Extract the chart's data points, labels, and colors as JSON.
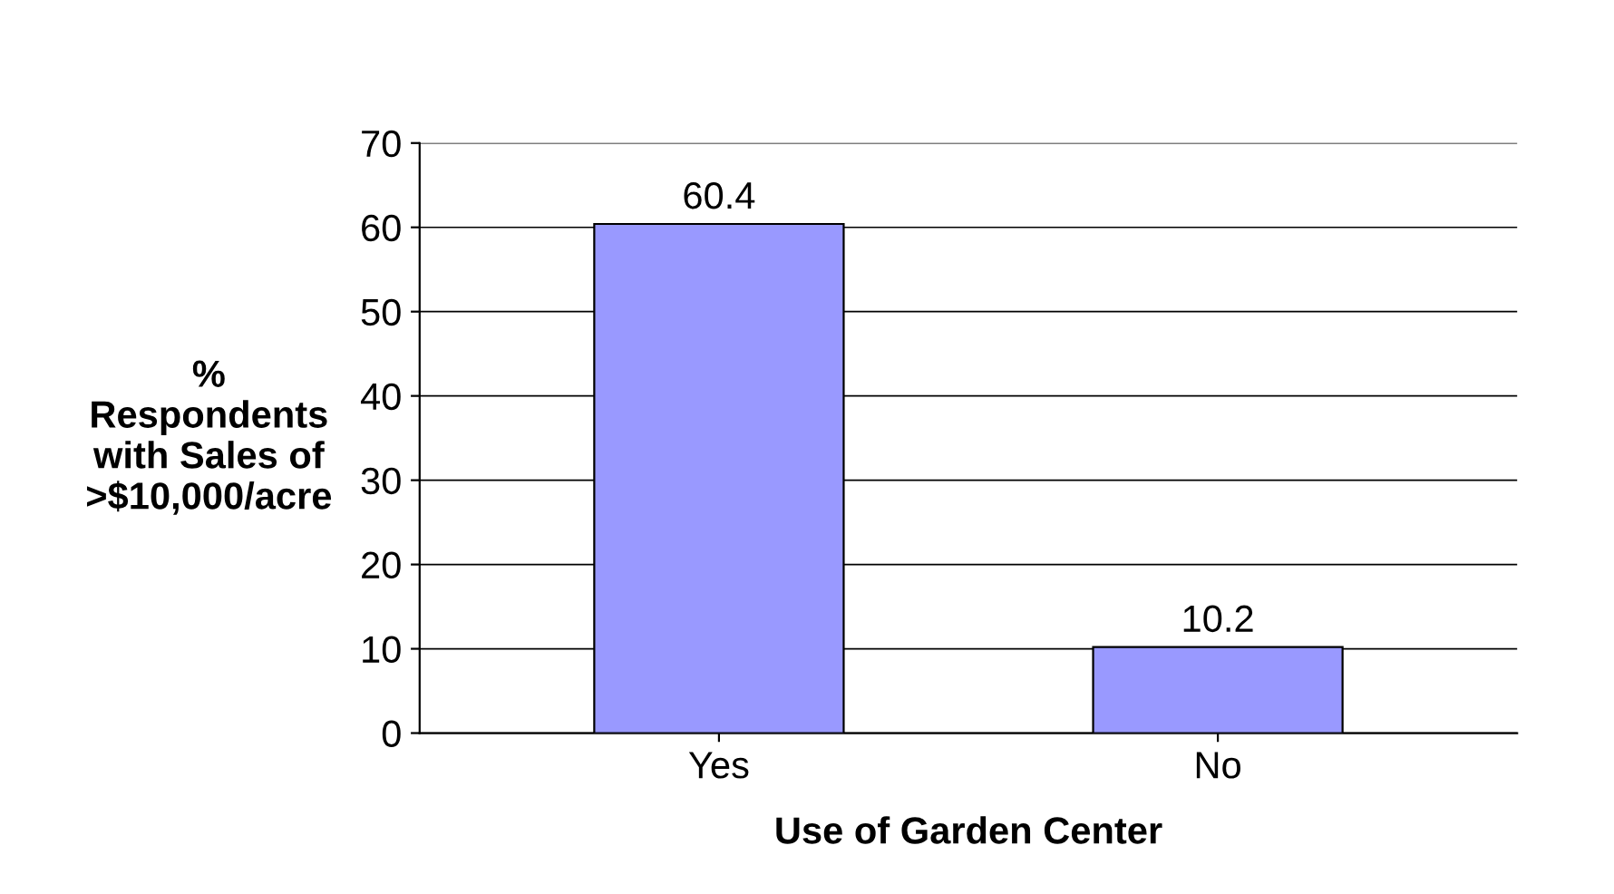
{
  "chart_data": {
    "type": "bar",
    "xlabel": "Use of Garden Center",
    "ylabel": "%\nRespondents\nwith Sales of\n>$10,000/acre",
    "categories": [
      "Yes",
      "No"
    ],
    "values": [
      60.4,
      10.2
    ],
    "color": "#9999ff",
    "ylim": [
      0,
      70
    ],
    "yticks": [
      0,
      10,
      20,
      30,
      40,
      50,
      60,
      70
    ],
    "grid": "y",
    "data_labels": true
  }
}
